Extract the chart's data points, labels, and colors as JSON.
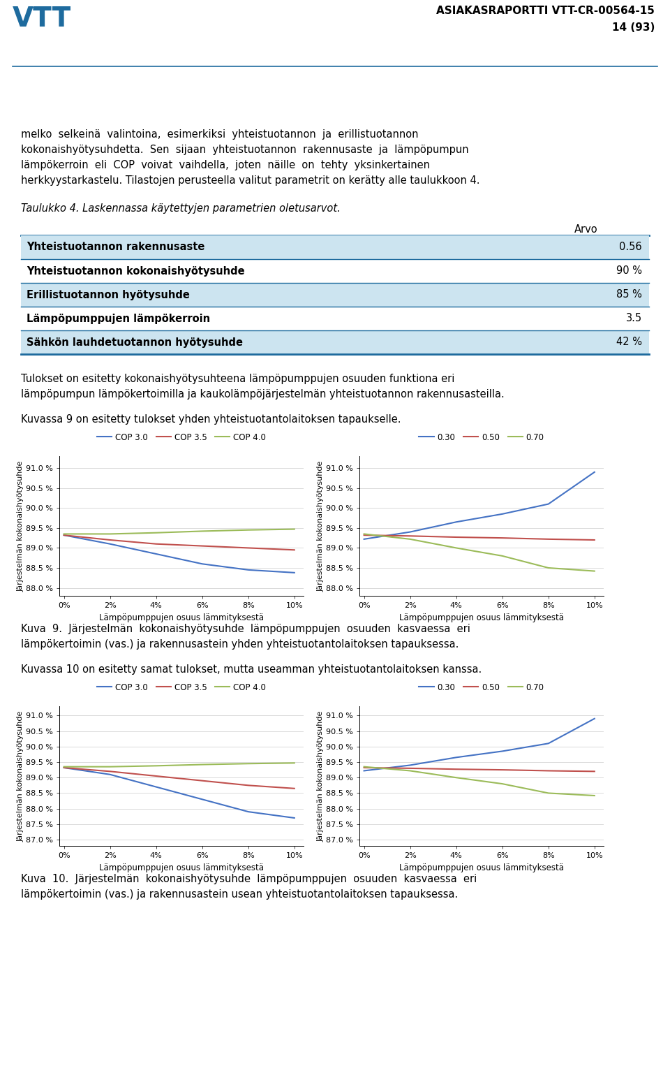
{
  "header_title": "ASIAKASRAPORTTI VTT-CR-00564-15",
  "header_page": "14 (93)",
  "table_caption": "Taulukko 4. Laskennassa käytettyjen parametrien oletusarvot.",
  "table_rows": [
    {
      "param": "Yhteistuotannon rakennusaste",
      "value": "0.56"
    },
    {
      "param": "Yhteistuotannon kokonaishyötysuhde",
      "value": "90 %"
    },
    {
      "param": "Erillistuotannon hyötysuhde",
      "value": "85 %"
    },
    {
      "param": "Lämpöpumppujen lämpökerroin",
      "value": "3.5"
    },
    {
      "param": "Sähkön lauhdetuotannon hyötysuhde",
      "value": "42 %"
    }
  ],
  "table_header": "Arvo",
  "table_alt_color": "#cce4f0",
  "table_border_color": "#1e6b9e",
  "chart1_left_legend": [
    "COP 3.0",
    "COP 3.5",
    "COP 4.0"
  ],
  "chart1_right_legend": [
    "0.30",
    "0.50",
    "0.70"
  ],
  "chart_colors_left": [
    "#4472c4",
    "#c0504d",
    "#9bbb59"
  ],
  "chart_colors_right": [
    "#4472c4",
    "#c0504d",
    "#9bbb59"
  ],
  "xlabel": "Lämpöpumppujen osuus lämmityksestä",
  "ylabel": "Järjestelmän kokonaishyötysuhde",
  "x_vals": [
    0,
    0.02,
    0.04,
    0.06,
    0.08,
    0.1
  ],
  "yticks1": [
    88.0,
    88.5,
    89.0,
    89.5,
    90.0,
    90.5,
    91.0
  ],
  "ytick_labels1": [
    "88.0 %",
    "88.5 %",
    "89.0 %",
    "89.5 %",
    "90.0 %",
    "90.5 %",
    "91.0 %"
  ],
  "ylim1": [
    87.8,
    91.3
  ],
  "chart1L_lines": [
    [
      89.32,
      89.1,
      88.85,
      88.6,
      88.45,
      88.38
    ],
    [
      89.32,
      89.2,
      89.1,
      89.05,
      89.0,
      88.95
    ],
    [
      89.35,
      89.35,
      89.38,
      89.42,
      89.45,
      89.47
    ]
  ],
  "chart1R_lines": [
    [
      89.22,
      89.4,
      89.65,
      89.85,
      90.1,
      90.9
    ],
    [
      89.32,
      89.3,
      89.27,
      89.25,
      89.22,
      89.2
    ],
    [
      89.35,
      89.22,
      89.0,
      88.8,
      88.5,
      88.42
    ]
  ],
  "yticks2": [
    87.0,
    87.5,
    88.0,
    88.5,
    89.0,
    89.5,
    90.0,
    90.5,
    91.0
  ],
  "ytick_labels2": [
    "87.0 %",
    "87.5 %",
    "88.0 %",
    "88.5 %",
    "89.0 %",
    "89.5 %",
    "90.0 %",
    "90.5 %",
    "91.0 %"
  ],
  "ylim2": [
    86.8,
    91.3
  ],
  "chart2L_lines": [
    [
      89.32,
      89.1,
      88.7,
      88.3,
      87.9,
      87.7
    ],
    [
      89.32,
      89.2,
      89.05,
      88.9,
      88.75,
      88.65
    ],
    [
      89.35,
      89.35,
      89.38,
      89.42,
      89.45,
      89.47
    ]
  ],
  "chart2R_lines": [
    [
      89.22,
      89.4,
      89.65,
      89.85,
      90.1,
      90.9
    ],
    [
      89.32,
      89.3,
      89.27,
      89.25,
      89.22,
      89.2
    ],
    [
      89.35,
      89.22,
      89.0,
      88.8,
      88.5,
      88.42
    ]
  ],
  "bg_color": "#ffffff",
  "text_color": "#000000",
  "header_color": "#000000",
  "vtt_blue": "#4472c4",
  "vtt_logo_blue": "#1e6b9e"
}
